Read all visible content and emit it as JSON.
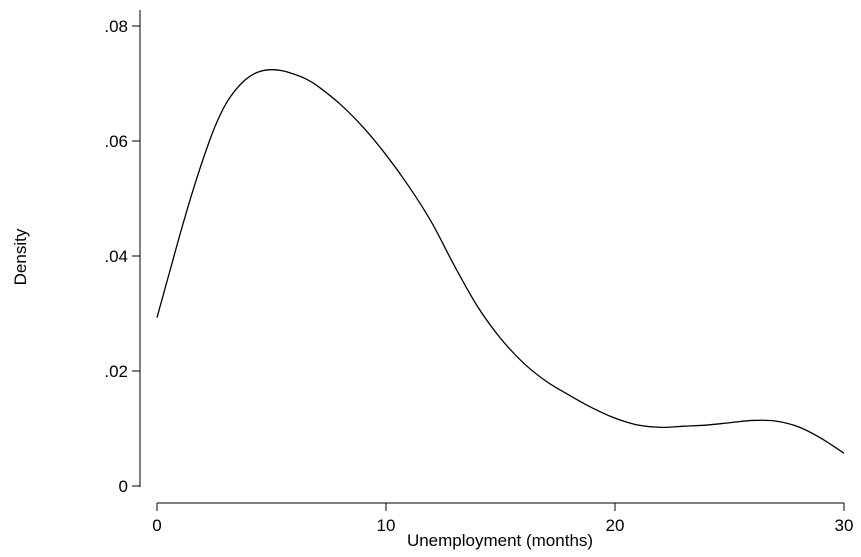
{
  "chart_data": {
    "type": "line",
    "title": "",
    "xlabel": "Unemployment (months)",
    "ylabel": "Density",
    "xlim": [
      0,
      30
    ],
    "ylim": [
      0,
      0.08
    ],
    "xticks": [
      0,
      10,
      20,
      30
    ],
    "xtick_labels": [
      "0",
      "10",
      "20",
      "30"
    ],
    "yticks": [
      0,
      0.02,
      0.04,
      0.06,
      0.08
    ],
    "ytick_labels": [
      "0",
      ".02",
      ".04",
      ".06",
      ".08"
    ],
    "grid": false,
    "legend": "none",
    "line_color": "#000000",
    "series": [
      {
        "x": [
          0,
          0.5,
          1,
          1.5,
          2,
          2.5,
          3,
          3.5,
          4,
          4.5,
          5,
          5.5,
          6,
          6.5,
          7,
          8,
          9,
          10,
          11,
          12,
          13,
          14,
          15,
          16,
          17,
          18,
          19,
          20,
          21,
          22,
          23,
          24,
          25,
          26,
          27,
          28,
          29,
          30
        ],
        "y": [
          0.0293,
          0.0365,
          0.0437,
          0.0505,
          0.0567,
          0.0622,
          0.0664,
          0.0692,
          0.0711,
          0.0721,
          0.0724,
          0.0722,
          0.0716,
          0.0708,
          0.0696,
          0.0664,
          0.0624,
          0.0576,
          0.0521,
          0.0458,
          0.0382,
          0.0312,
          0.0257,
          0.0214,
          0.0182,
          0.0158,
          0.0136,
          0.0118,
          0.0106,
          0.0102,
          0.0104,
          0.0106,
          0.011,
          0.0114,
          0.0113,
          0.0103,
          0.0083,
          0.0057
        ]
      }
    ]
  }
}
